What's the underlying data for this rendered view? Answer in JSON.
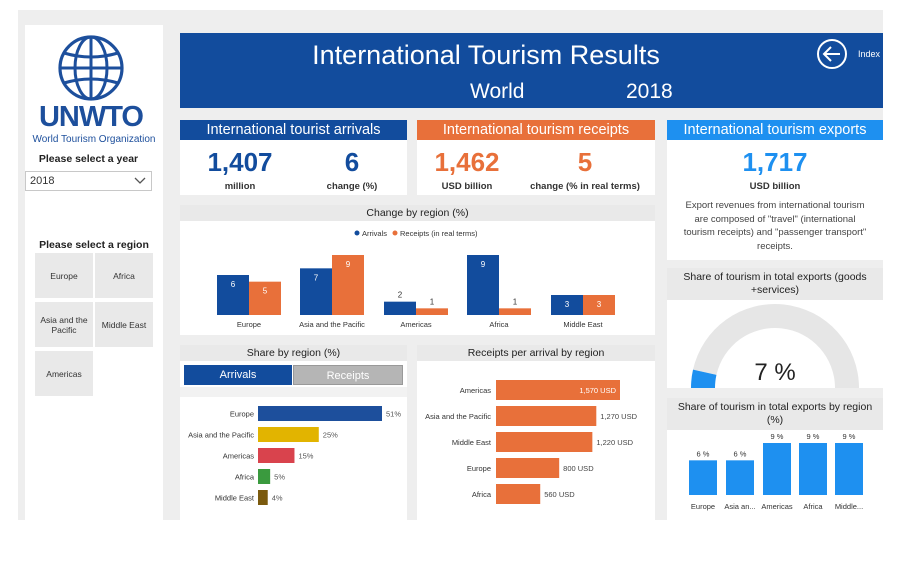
{
  "sidebar": {
    "logo_text": "UNWTO",
    "logo_subtitle": "World Tourism Organization",
    "year_label": "Please select a year",
    "year_value": "2018",
    "region_label": "Please select a region",
    "regions": [
      "Europe",
      "Africa",
      "Asia and the Pacific",
      "Middle East",
      "Americas"
    ]
  },
  "header": {
    "title": "International Tourism Results",
    "scope": "World",
    "year": "2018",
    "index_label": "Index"
  },
  "colors": {
    "arrivals": "#124c9d",
    "receipts": "#e8703a",
    "exports": "#1e90f0"
  },
  "kpi": {
    "arrivals": {
      "title": "International tourist arrivals",
      "value": "1,407",
      "unit": "million",
      "change": "6",
      "change_label": "change (%)"
    },
    "receipts": {
      "title": "International tourism receipts",
      "value": "1,462",
      "unit": "USD billion",
      "change": "5",
      "change_label": "change (% in real terms)"
    },
    "exports": {
      "title": "International tourism exports",
      "value": "1,717",
      "unit": "USD billion",
      "description": [
        "Export revenues from international tourism",
        "are composed of \"travel\" (international",
        "tourism receipts) and \"passenger transport\"",
        "receipts."
      ]
    }
  },
  "change_chart": {
    "title": "Change by region (%)",
    "legend": [
      "Arrivals",
      "Receipts (in real terms)"
    ]
  },
  "share_chart": {
    "title": "Share by region (%)",
    "tab_arrivals": "Arrivals",
    "tab_receipts": "Receipts"
  },
  "rpa_chart": {
    "title": "Receipts per arrival by region"
  },
  "gauge": {
    "title_line1": "Share of tourism in total exports (goods",
    "title_line2": "+services)",
    "value_label": "7 %"
  },
  "exports_region_chart": {
    "title_line1": "Share of tourism in total exports by region",
    "title_line2": "(%)"
  },
  "chart_data": [
    {
      "type": "bar",
      "title": "Change by region (%)",
      "categories": [
        "Europe",
        "Asia and the Pacific",
        "Americas",
        "Africa",
        "Middle East"
      ],
      "series": [
        {
          "name": "Arrivals",
          "values": [
            6,
            7,
            2,
            9,
            3
          ]
        },
        {
          "name": "Receipts (in real terms)",
          "values": [
            5,
            9,
            1,
            1,
            3
          ]
        }
      ],
      "ylim": [
        0,
        9
      ]
    },
    {
      "type": "bar",
      "title": "Share by region (%)",
      "orientation": "horizontal",
      "categories": [
        "Europe",
        "Asia and the Pacific",
        "Americas",
        "Africa",
        "Middle East"
      ],
      "values": [
        51,
        25,
        15,
        5,
        4
      ],
      "value_labels": [
        "51%",
        "25%",
        "15%",
        "5%",
        "4%"
      ],
      "colors": [
        "#1d4f9c",
        "#e2b400",
        "#d9434d",
        "#3a9a3e",
        "#7b5a0e"
      ],
      "xlim": [
        0,
        51
      ]
    },
    {
      "type": "bar",
      "title": "Receipts per arrival by region",
      "orientation": "horizontal",
      "categories": [
        "Americas",
        "Asia and the Pacific",
        "Middle East",
        "Europe",
        "Africa"
      ],
      "values": [
        1570,
        1270,
        1220,
        800,
        560
      ],
      "value_labels": [
        "1,570 USD",
        "1,270 USD",
        "1,220 USD",
        "800 USD",
        "560 USD"
      ],
      "xlim": [
        0,
        1570
      ]
    },
    {
      "type": "gauge",
      "title": "Share of tourism in total exports (goods +services)",
      "value": 7,
      "range": [
        0,
        100
      ]
    },
    {
      "type": "bar",
      "title": "Share of tourism in total exports by region (%)",
      "categories": [
        "Europe",
        "Asia an...",
        "Americas",
        "Africa",
        "Middle..."
      ],
      "values": [
        6,
        6,
        9,
        9,
        9
      ],
      "value_labels": [
        "6 %",
        "6 %",
        "9 %",
        "9 %",
        "9 %"
      ],
      "ylim": [
        0,
        9
      ]
    }
  ]
}
